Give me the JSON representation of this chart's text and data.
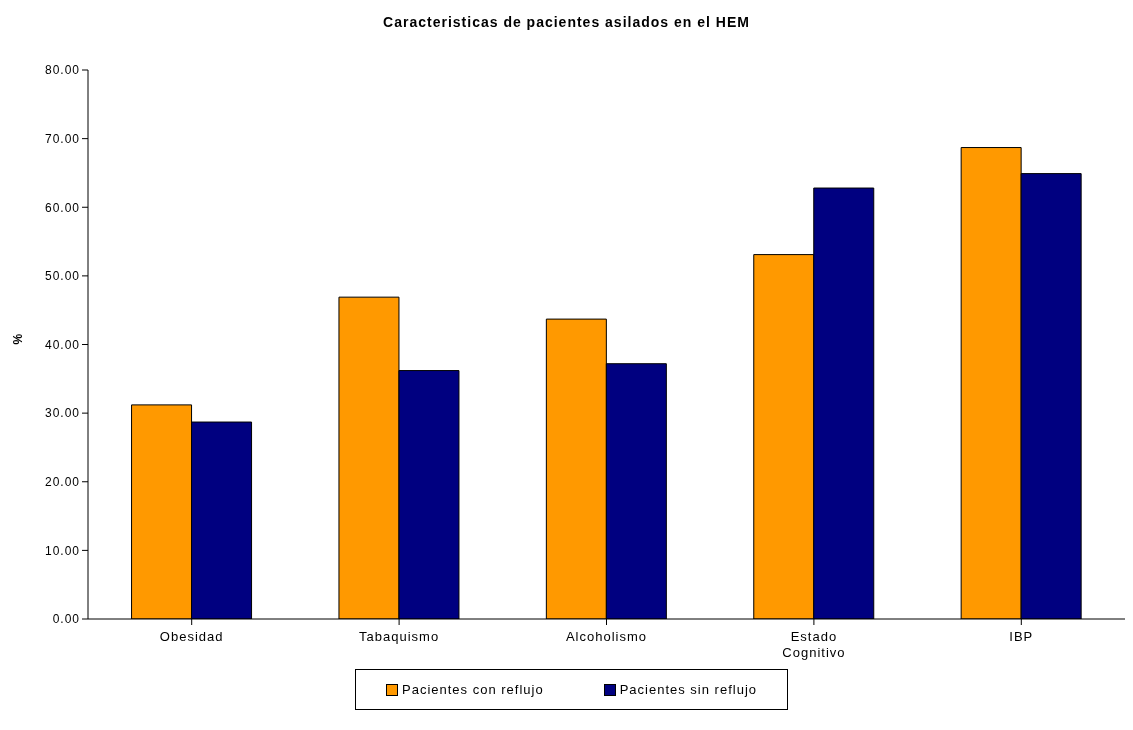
{
  "chart_data": {
    "type": "bar",
    "title": "Caracteristicas de pacientes asilados en el HEM",
    "ylabel": "%",
    "categories": [
      "Obesidad",
      "Tabaquismo",
      "Alcoholismo",
      "Estado Cognitivo",
      "IBP"
    ],
    "series": [
      {
        "name": "Pacientes con reflujo",
        "color": "#ff9900",
        "values": [
          31.2,
          46.9,
          43.7,
          53.1,
          68.7
        ]
      },
      {
        "name": "Pacientes sin reflujo",
        "color": "#000080",
        "values": [
          28.7,
          36.2,
          37.2,
          62.8,
          64.9
        ]
      }
    ],
    "ylim": [
      0,
      80
    ],
    "yticks": [
      {
        "value": 0,
        "label": "0.00"
      },
      {
        "value": 10,
        "label": "10.00"
      },
      {
        "value": 20,
        "label": "20.00"
      },
      {
        "value": 30,
        "label": "30.00"
      },
      {
        "value": 40,
        "label": "40.00"
      },
      {
        "value": 50,
        "label": "50.00"
      },
      {
        "value": 60,
        "label": "60.00"
      },
      {
        "value": 70,
        "label": "70.00"
      },
      {
        "value": 80,
        "label": "80.00"
      }
    ],
    "grid": false,
    "legend": "bottom"
  }
}
